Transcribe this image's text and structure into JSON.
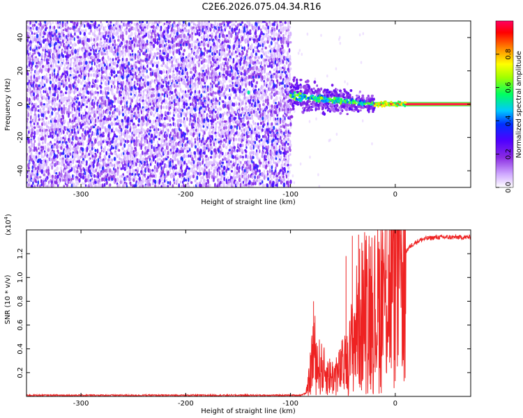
{
  "figure_title": "C2E6.2026.075.04.34.R16",
  "chart_data": [
    {
      "type": "heatmap",
      "title": "C2E6.2026.075.04.34.R16",
      "xlabel": "Height of straight line (km)",
      "ylabel": "Frequency (Hz)",
      "xlim": [
        -352,
        72
      ],
      "ylim": [
        -50,
        50
      ],
      "xticks": [
        -300,
        -200,
        -100,
        0
      ],
      "yticks": [
        -40,
        -20,
        0,
        20,
        40
      ],
      "colorbar": {
        "label": "Normalized spectral amplitude",
        "range": [
          0.0,
          1.0
        ],
        "ticks": [
          0.0,
          0.2,
          0.4,
          0.6,
          0.8
        ],
        "colors": [
          "#ffffff",
          "#cfa8ff",
          "#8a2be2",
          "#5000ff",
          "#0030ff",
          "#00c8ff",
          "#00ff60",
          "#a0ff00",
          "#ffff00",
          "#ff8000",
          "#ff0000",
          "#ff0060"
        ]
      },
      "regions": [
        {
          "name": "noise",
          "x_range": [
            -352,
            -100
          ],
          "freq_range": [
            -50,
            50
          ],
          "amplitude": 0.15
        },
        {
          "name": "transition",
          "x_range": [
            -100,
            -20
          ],
          "center_freq_start": 5,
          "center_freq_end": 0,
          "spread_hz": 10,
          "amplitude": 0.45
        },
        {
          "name": "carrier",
          "x_range": [
            -20,
            72
          ],
          "center_freq": 0,
          "amplitude": 1.0
        }
      ]
    },
    {
      "type": "line",
      "xlabel": "Height of straight line (km)",
      "ylabel": "SNR (10 * v/v)",
      "multiplier_label": "(x10",
      "multiplier_exp": "4",
      "multiplier_close": ")",
      "xlim": [
        -352,
        72
      ],
      "ylim": [
        0,
        1.4
      ],
      "xticks": [
        -300,
        -200,
        -100,
        0
      ],
      "yticks": [
        0.2,
        0.4,
        0.6,
        0.8,
        1.0,
        1.2
      ],
      "line_color": "#ee2222",
      "series": [
        {
          "name": "SNR",
          "x": [
            -352,
            -100,
            -90,
            -85,
            -82,
            -80,
            -78,
            -75,
            -70,
            -65,
            -60,
            -55,
            -50,
            -45,
            -40,
            -35,
            -30,
            -25,
            -20,
            -15,
            -10,
            -5,
            0,
            5,
            10,
            15,
            20,
            25,
            30,
            40,
            50,
            60,
            72
          ],
          "y": [
            0.01,
            0.01,
            0.01,
            0.03,
            0.15,
            0.3,
            0.45,
            0.3,
            0.25,
            0.2,
            0.18,
            0.2,
            0.28,
            0.3,
            0.55,
            0.68,
            0.78,
            0.85,
            0.75,
            0.88,
            0.95,
            1.05,
            1.12,
            1.15,
            1.22,
            1.27,
            1.3,
            1.32,
            1.33,
            1.34,
            1.34,
            1.34,
            1.34
          ],
          "peaks": [
            [
              -78,
              0.8
            ],
            [
              -47,
              1.18
            ],
            [
              -41,
              1.35
            ],
            [
              -35,
              1.36
            ],
            [
              -25,
              1.35
            ],
            [
              -12,
              1.38
            ],
            [
              -8,
              1.4
            ],
            [
              5,
              1.36
            ]
          ]
        }
      ]
    }
  ]
}
